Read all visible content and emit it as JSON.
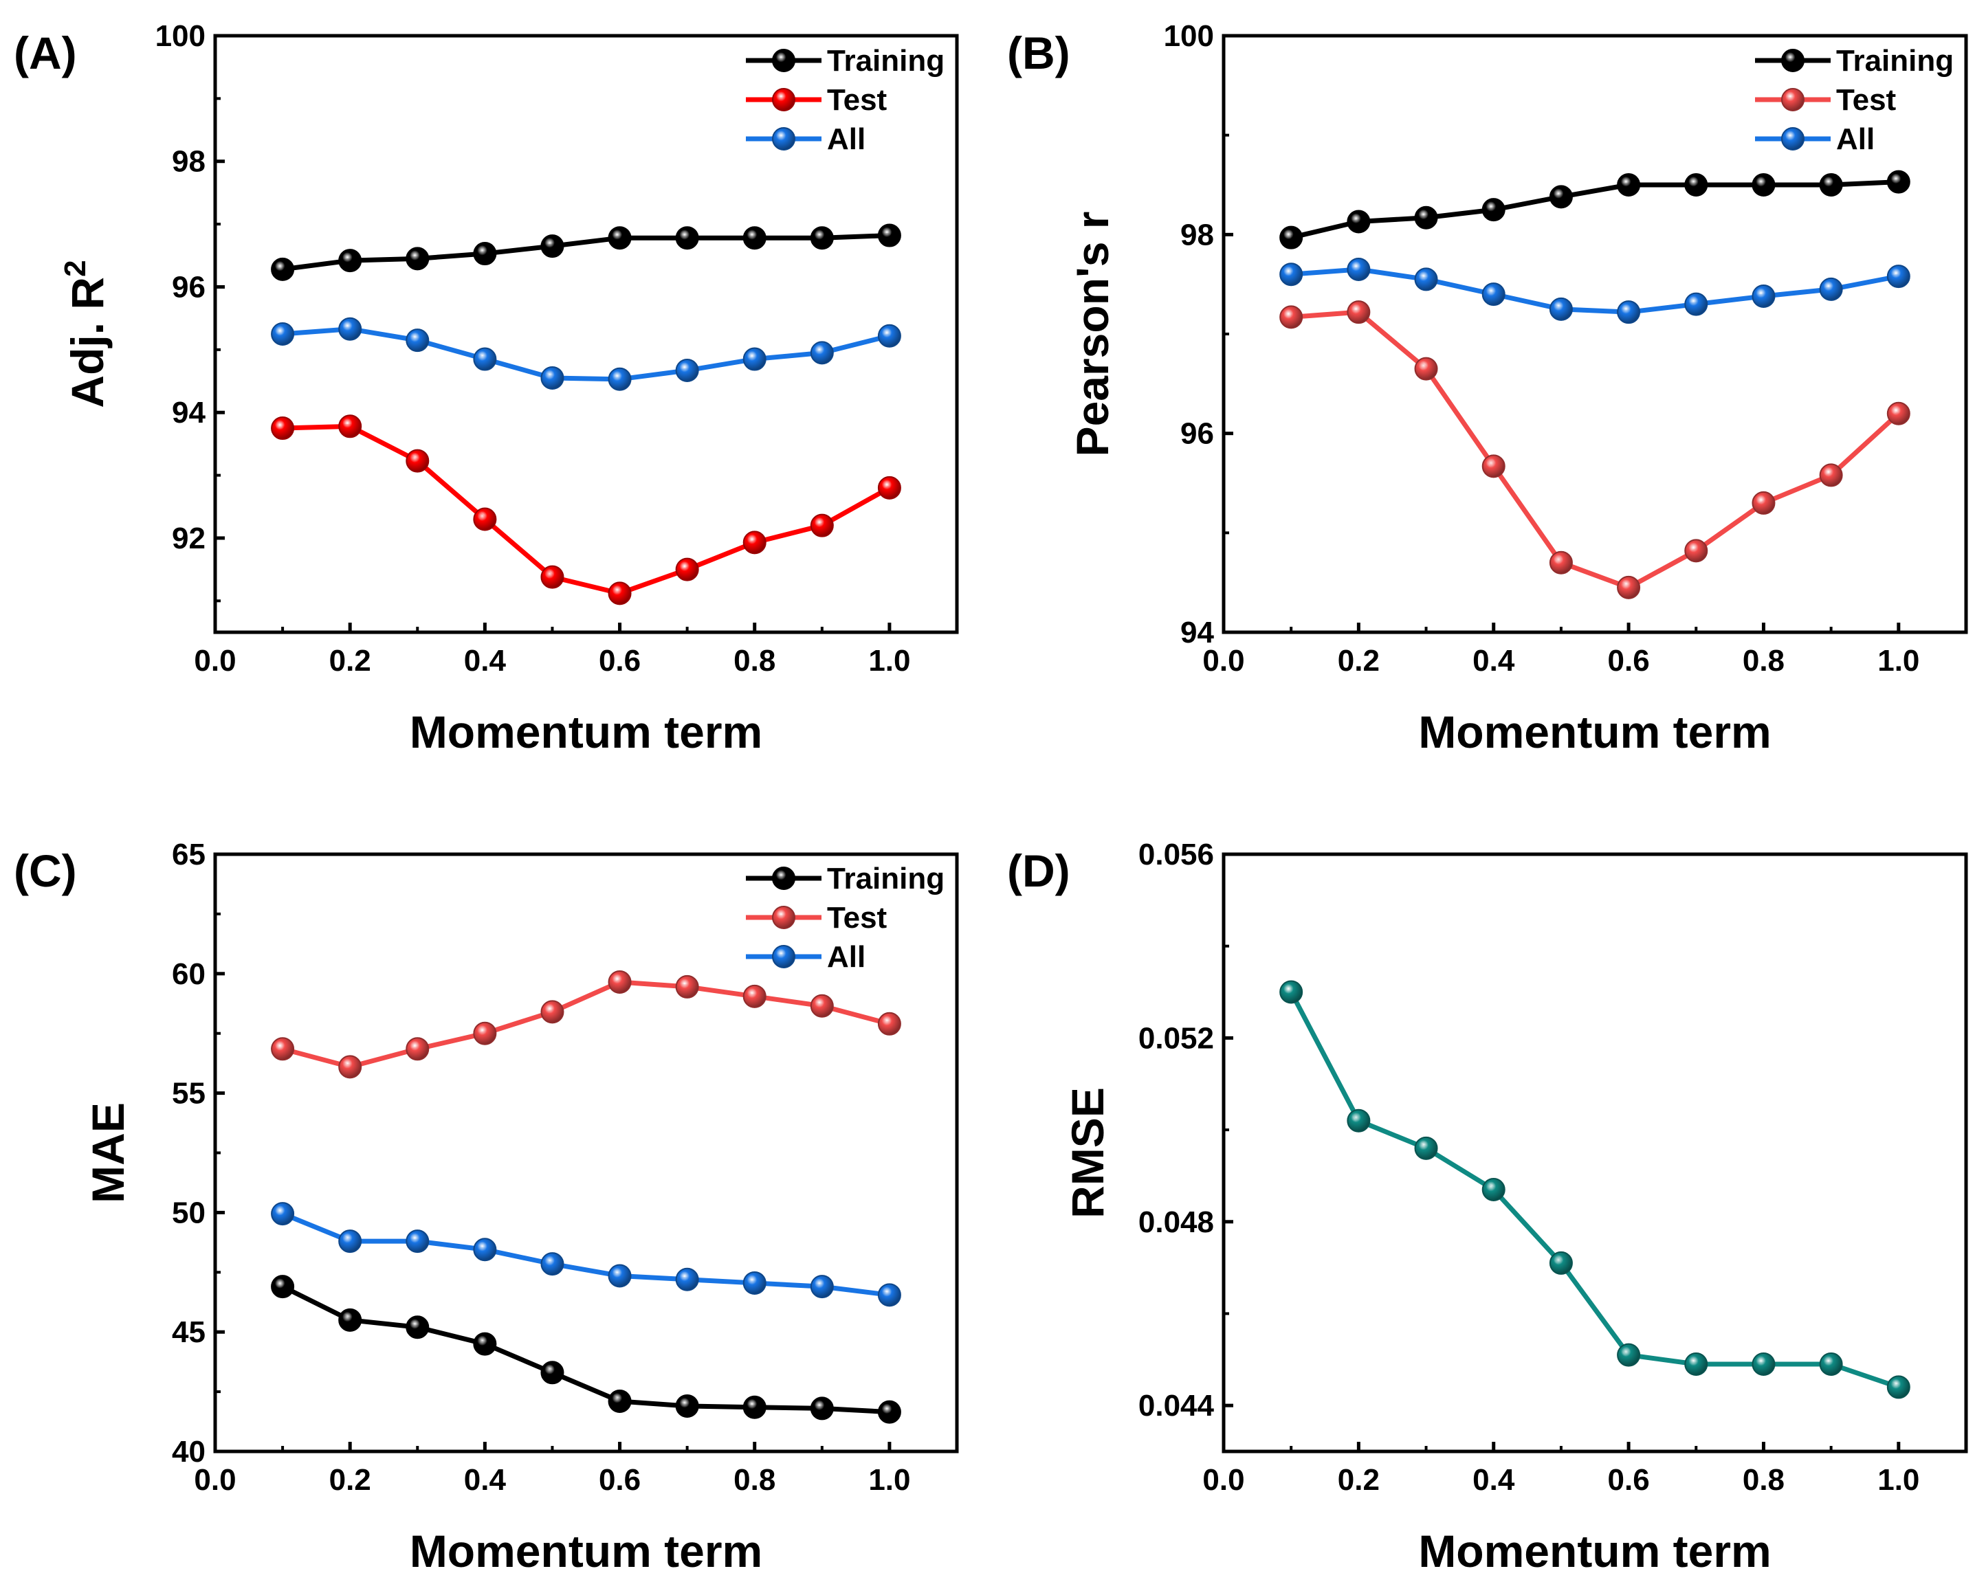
{
  "chart_data": [
    {
      "type": "line",
      "panel_label": "(A)",
      "xlabel": "Momentum term",
      "ylabel": "Adj. R",
      "ylabel_sup": "2",
      "xlim": [
        0.0,
        1.1
      ],
      "ylim": [
        90.5,
        100
      ],
      "x_ticks": [
        0.0,
        0.2,
        0.4,
        0.6,
        0.8,
        1.0
      ],
      "x_tick_labels": [
        "0.0",
        "0.2",
        "0.4",
        "0.6",
        "0.8",
        "1.0"
      ],
      "y_ticks": [
        92,
        94,
        96,
        98,
        100
      ],
      "y_tick_labels": [
        "92",
        "94",
        "96",
        "98",
        "100"
      ],
      "legend": "top-right",
      "x": [
        0.1,
        0.2,
        0.3,
        0.4,
        0.5,
        0.6,
        0.7,
        0.8,
        0.9,
        1.0
      ],
      "series": [
        {
          "name": "Training",
          "color": "#000000",
          "values": [
            96.28,
            96.42,
            96.45,
            96.53,
            96.65,
            96.78,
            96.78,
            96.78,
            96.78,
            96.82
          ]
        },
        {
          "name": "Test",
          "color": "#ff0000",
          "values": [
            93.75,
            93.78,
            93.23,
            92.3,
            91.38,
            91.12,
            91.5,
            91.93,
            92.2,
            92.8
          ]
        },
        {
          "name": "All",
          "color": "#1874e4",
          "values": [
            95.25,
            95.33,
            95.15,
            94.85,
            94.55,
            94.53,
            94.67,
            94.85,
            94.95,
            95.22
          ]
        }
      ]
    },
    {
      "type": "line",
      "panel_label": "(B)",
      "xlabel": "Momentum term",
      "ylabel": "Pearson's r",
      "xlim": [
        0.0,
        1.1
      ],
      "ylim": [
        94,
        100
      ],
      "x_ticks": [
        0.0,
        0.2,
        0.4,
        0.6,
        0.8,
        1.0
      ],
      "x_tick_labels": [
        "0.0",
        "0.2",
        "0.4",
        "0.6",
        "0.8",
        "1.0"
      ],
      "y_ticks": [
        94,
        96,
        98,
        100
      ],
      "y_tick_labels": [
        "94",
        "96",
        "98",
        "100"
      ],
      "legend": "top-right",
      "x": [
        0.1,
        0.2,
        0.3,
        0.4,
        0.5,
        0.6,
        0.7,
        0.8,
        0.9,
        1.0
      ],
      "series": [
        {
          "name": "Training",
          "color": "#000000",
          "values": [
            97.97,
            98.13,
            98.17,
            98.25,
            98.38,
            98.5,
            98.5,
            98.5,
            98.5,
            98.53
          ]
        },
        {
          "name": "Test",
          "color": "#f24a4a",
          "values": [
            97.17,
            97.22,
            96.65,
            95.67,
            94.7,
            94.45,
            94.82,
            95.3,
            95.58,
            96.2
          ]
        },
        {
          "name": "All",
          "color": "#1874e4",
          "values": [
            97.6,
            97.65,
            97.55,
            97.4,
            97.25,
            97.22,
            97.3,
            97.38,
            97.45,
            97.58
          ]
        }
      ]
    },
    {
      "type": "line",
      "panel_label": "(C)",
      "xlabel": "Momentum term",
      "ylabel": "MAE",
      "xlim": [
        0.0,
        1.1
      ],
      "ylim": [
        40,
        65
      ],
      "x_ticks": [
        0.0,
        0.2,
        0.4,
        0.6,
        0.8,
        1.0
      ],
      "x_tick_labels": [
        "0.0",
        "0.2",
        "0.4",
        "0.6",
        "0.8",
        "1.0"
      ],
      "y_ticks": [
        40,
        45,
        50,
        55,
        60,
        65
      ],
      "y_tick_labels": [
        "40",
        "45",
        "50",
        "55",
        "60",
        "65"
      ],
      "legend": "top-right",
      "x": [
        0.1,
        0.2,
        0.3,
        0.4,
        0.5,
        0.6,
        0.7,
        0.8,
        0.9,
        1.0
      ],
      "series": [
        {
          "name": "Training",
          "color": "#000000",
          "values": [
            46.9,
            45.5,
            45.2,
            44.5,
            43.3,
            42.1,
            41.9,
            41.85,
            41.8,
            41.65
          ]
        },
        {
          "name": "Test",
          "color": "#f24a4a",
          "values": [
            56.85,
            56.1,
            56.85,
            57.5,
            58.4,
            59.65,
            59.45,
            59.05,
            58.65,
            57.9
          ]
        },
        {
          "name": "All",
          "color": "#1874e4",
          "values": [
            49.95,
            48.8,
            48.8,
            48.45,
            47.85,
            47.35,
            47.2,
            47.05,
            46.9,
            46.55
          ]
        }
      ]
    },
    {
      "type": "line",
      "panel_label": "(D)",
      "xlabel": "Momentum term",
      "ylabel": "RMSE",
      "xlim": [
        0.0,
        1.1
      ],
      "ylim": [
        0.043,
        0.056
      ],
      "x_ticks": [
        0.0,
        0.2,
        0.4,
        0.6,
        0.8,
        1.0
      ],
      "x_tick_labels": [
        "0.0",
        "0.2",
        "0.4",
        "0.6",
        "0.8",
        "1.0"
      ],
      "y_ticks": [
        0.044,
        0.048,
        0.052,
        0.056
      ],
      "y_tick_labels": [
        "0.044",
        "0.048",
        "0.052",
        "0.056"
      ],
      "legend": "none",
      "x": [
        0.1,
        0.2,
        0.3,
        0.4,
        0.5,
        0.6,
        0.7,
        0.8,
        0.9,
        1.0
      ],
      "series": [
        {
          "name": "RMSE",
          "color": "#0f8a83",
          "values": [
            0.053,
            0.0502,
            0.0496,
            0.0487,
            0.0471,
            0.0451,
            0.0449,
            0.0449,
            0.0449,
            0.0444
          ]
        }
      ]
    }
  ]
}
